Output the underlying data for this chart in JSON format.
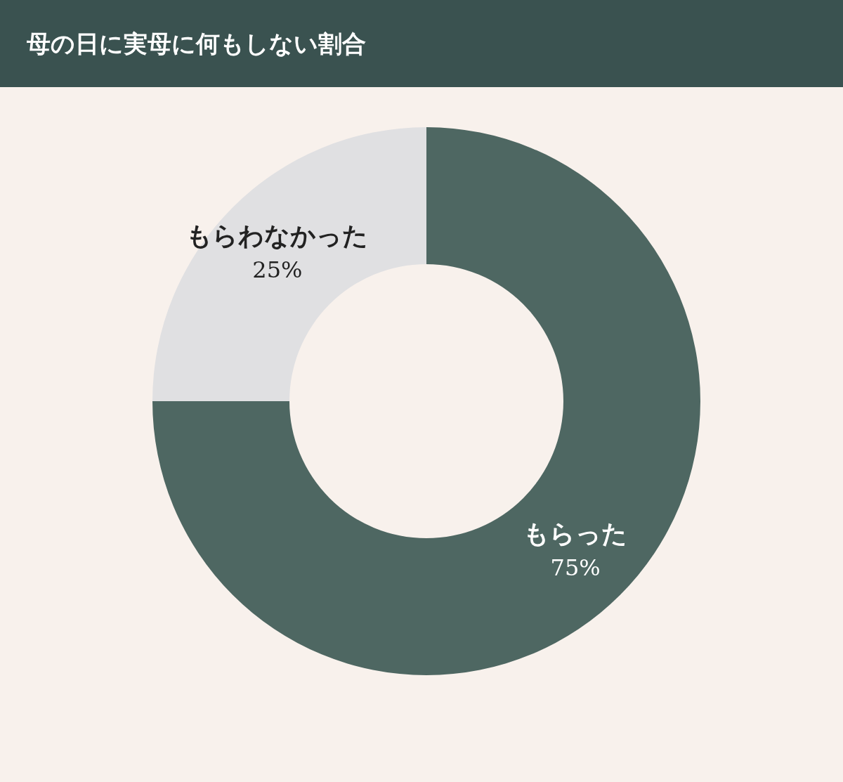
{
  "chart_data": {
    "type": "donut",
    "title": "母の日に実母に何もしない割合",
    "categories": [
      "もらった",
      "もらわなかった"
    ],
    "values": [
      75,
      25
    ],
    "colors": [
      "#4e6762",
      "#e0e0e2"
    ],
    "value_labels": [
      "75%",
      "25%"
    ]
  }
}
